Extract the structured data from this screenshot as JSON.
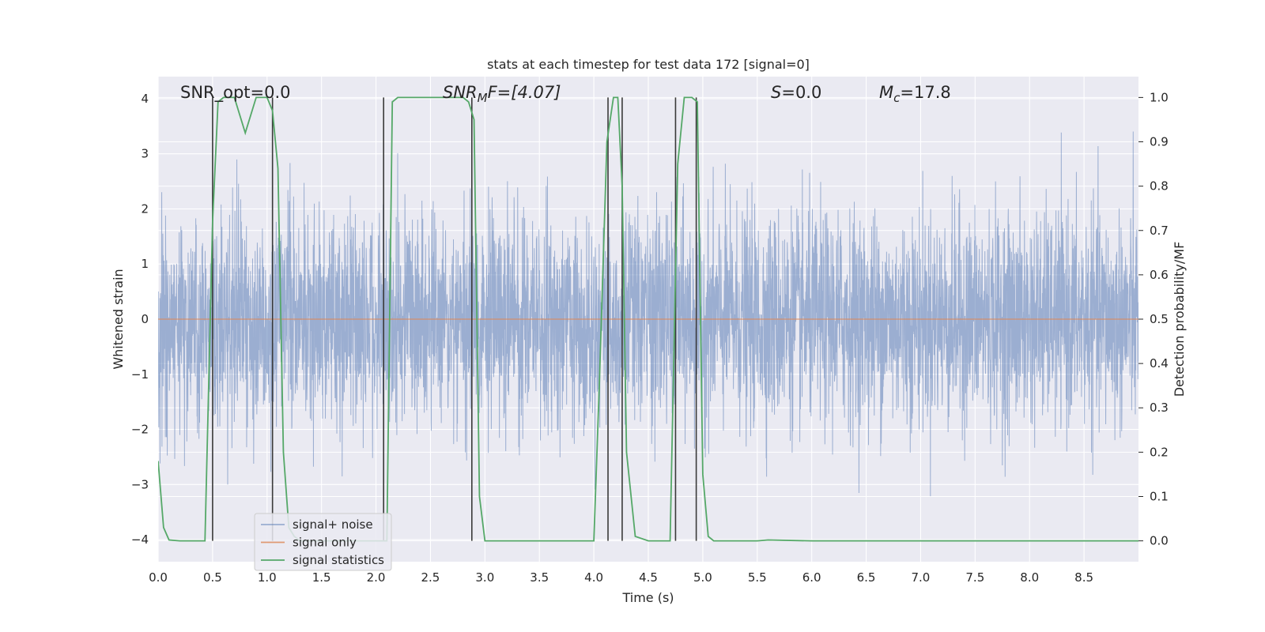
{
  "chart_data": {
    "type": "line",
    "title": "stats at each timestep for test data 172 [signal=0]",
    "xlabel": "Time (s)",
    "ylabel": "Whitened strain",
    "y2label": "Detection probability/MF",
    "xlim": [
      0,
      9
    ],
    "ylim": [
      -4.4,
      4.4
    ],
    "y2lim": [
      -0.047,
      1.047
    ],
    "x_ticks": [
      "0.0",
      "0.5",
      "1.0",
      "1.5",
      "2.0",
      "2.5",
      "3.0",
      "3.5",
      "4.0",
      "4.5",
      "5.0",
      "5.5",
      "6.0",
      "6.5",
      "7.0",
      "7.5",
      "8.0",
      "8.5"
    ],
    "y_ticks": [
      "4",
      "3",
      "2",
      "1",
      "0",
      "−1",
      "−2",
      "−3",
      "−4"
    ],
    "y2_ticks": [
      "1.0",
      "0.9",
      "0.8",
      "0.7",
      "0.6",
      "0.5",
      "0.4",
      "0.3",
      "0.2",
      "0.1",
      "0.0"
    ],
    "grid": true,
    "legend_position": "lower-left",
    "colors": {
      "signal_noise": "#4c72b0",
      "signal_only": "#dd8452",
      "signal_statistics": "#55a868",
      "event_lines": "#3a3a3a",
      "plot_bg": "#eaeaf2",
      "grid": "#ffffff"
    },
    "series": [
      {
        "name": "signal+ noise",
        "axis": "left",
        "description_type": "noise",
        "sample_rate": 512,
        "duration": 9,
        "approx_sigma": 0.95,
        "approx_range": [
          -3.8,
          4.0
        ]
      },
      {
        "name": "signal only",
        "axis": "left",
        "x": [
          0,
          9
        ],
        "y": [
          0,
          0
        ]
      },
      {
        "name": "signal statistics",
        "axis": "right",
        "x": [
          0,
          0.05,
          0.1,
          0.2,
          0.3,
          0.4,
          0.43,
          0.5,
          0.55,
          0.6,
          0.7,
          0.8,
          0.9,
          0.95,
          1.0,
          1.05,
          1.1,
          1.15,
          1.2,
          1.25,
          1.3,
          1.4,
          1.5,
          1.6,
          1.7,
          1.8,
          1.9,
          2.0,
          2.07,
          2.1,
          2.15,
          2.2,
          2.3,
          2.4,
          2.5,
          2.6,
          2.7,
          2.8,
          2.85,
          2.9,
          2.95,
          3.0,
          3.5,
          4.0,
          4.05,
          4.12,
          4.18,
          4.22,
          4.26,
          4.3,
          4.38,
          4.5,
          4.6,
          4.7,
          4.77,
          4.83,
          4.9,
          4.95,
          5.0,
          5.05,
          5.1,
          5.5,
          5.6,
          6.0,
          7.0,
          8.0,
          9.0
        ],
        "y": [
          0.18,
          0.03,
          0.002,
          0.0,
          0.0,
          0.0,
          0.0,
          0.72,
          0.99,
          1.0,
          1.0,
          0.92,
          1.0,
          1.0,
          1.0,
          0.97,
          0.84,
          0.2,
          0.03,
          0.01,
          0.0,
          0.0,
          0.0,
          0.0,
          0.0,
          0.0,
          0.0,
          0.0,
          0.0,
          0.0,
          0.99,
          1.0,
          1.0,
          1.0,
          1.0,
          1.0,
          1.0,
          1.0,
          0.99,
          0.95,
          0.1,
          0.0,
          0.0,
          0.0,
          0.35,
          0.9,
          1.0,
          1.0,
          0.8,
          0.2,
          0.01,
          0.0,
          0.0,
          0.0,
          0.85,
          1.0,
          1.0,
          0.99,
          0.15,
          0.01,
          0.0,
          0.0,
          0.002,
          0.0,
          0.0,
          0.0,
          0.0
        ]
      }
    ],
    "event_lines_x": [
      0.5,
      1.05,
      2.07,
      2.88,
      4.13,
      4.26,
      4.75,
      4.94
    ],
    "annotations": {
      "snr_opt": "SNR_opt=0.0",
      "snr_mf_math": "SNR",
      "snr_mf_sub": "M",
      "snr_mf_tail": "F=[4.07]",
      "s_math": "S",
      "s_tail": "=0.0",
      "mc_math": "M",
      "mc_sub": "c",
      "mc_tail": "=17.8"
    },
    "legend": [
      "signal+ noise",
      "signal only",
      "signal statistics"
    ]
  }
}
